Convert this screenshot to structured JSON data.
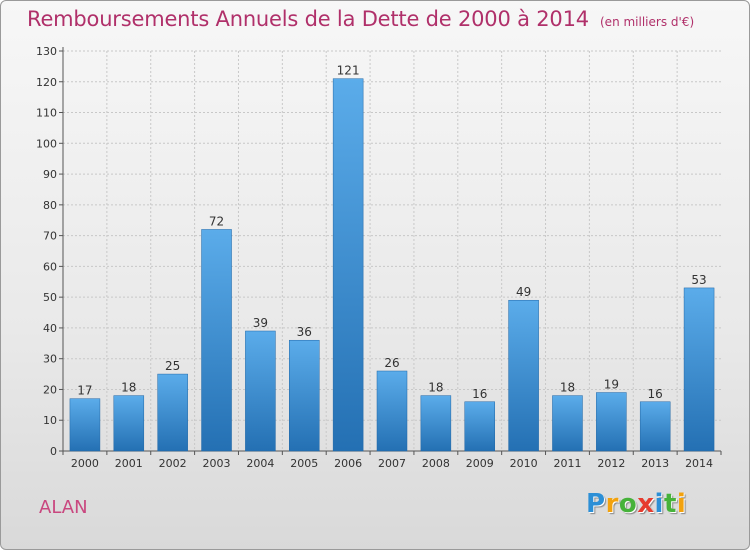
{
  "title": "Remboursements Annuels de la Dette de 2000 à 2014",
  "subtitle": "(en milliers d'€)",
  "town": "ALAN",
  "logo": {
    "letters": [
      "P",
      "r",
      "o",
      "x",
      "i",
      "t",
      "i"
    ],
    "colors": [
      "#2c8fd6",
      "#f2a20e",
      "#46b23a",
      "#e63b2e",
      "#2c8fd6",
      "#46b23a",
      "#f2a20e"
    ]
  },
  "colors": {
    "bar": "#3b8fd0",
    "bar_light": "#5bacea",
    "bar_dark": "#2470b3",
    "title": "#b0306a",
    "grid": "#c8c8c8"
  },
  "chart_data": {
    "type": "bar",
    "title": "Remboursements Annuels de la Dette de 2000 à 2014",
    "subtitle": "(en milliers d'€)",
    "categories": [
      "2000",
      "2001",
      "2002",
      "2003",
      "2004",
      "2005",
      "2006",
      "2007",
      "2008",
      "2009",
      "2010",
      "2011",
      "2012",
      "2013",
      "2014"
    ],
    "values": [
      17,
      18,
      25,
      72,
      39,
      36,
      121,
      26,
      18,
      16,
      49,
      18,
      19,
      16,
      53
    ],
    "xlabel": "",
    "ylabel": "",
    "ylim": [
      0,
      130
    ],
    "yticks": [
      0,
      10,
      20,
      30,
      40,
      50,
      60,
      70,
      80,
      90,
      100,
      110,
      120,
      130
    ],
    "grid": true,
    "legend": "none"
  }
}
